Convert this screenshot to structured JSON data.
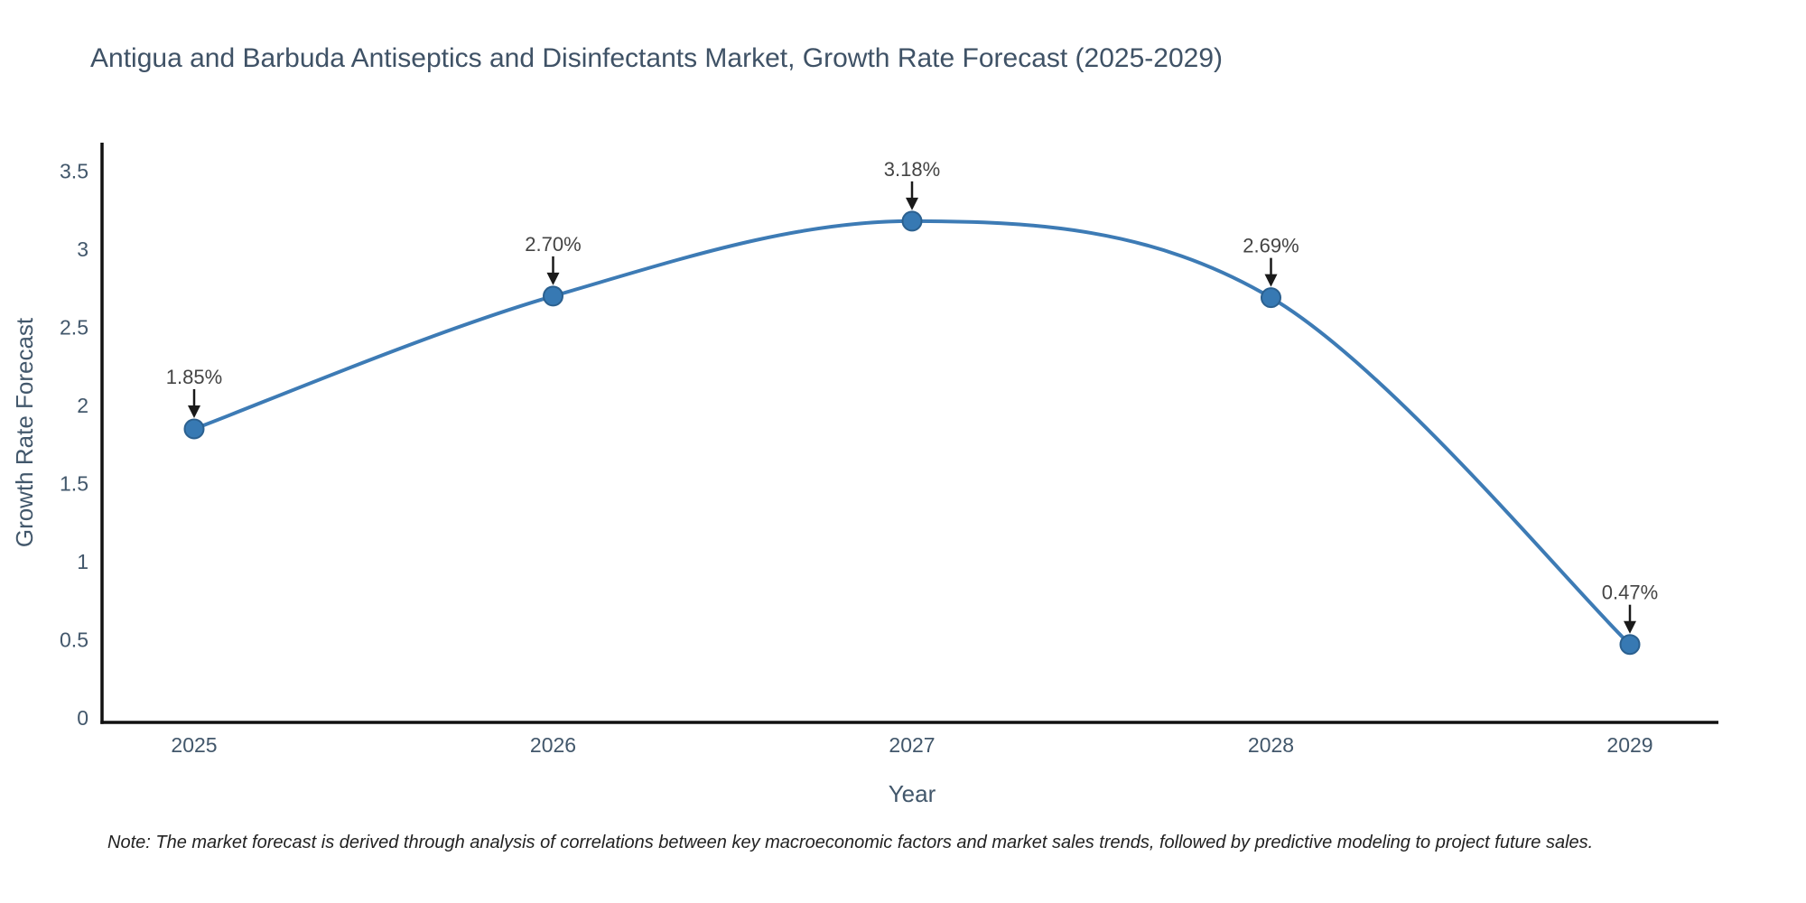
{
  "page": {
    "title": "Antigua and Barbuda Antiseptics and Disinfectants Market, Growth Rate Forecast (2025-2029)",
    "note": "Note: The market forecast is derived through analysis of correlations between key macroeconomic factors and market sales trends, followed by predictive modeling to project future sales."
  },
  "chart_data": {
    "type": "line",
    "title": "Antigua and Barbuda Antiseptics and Disinfectants Market, Growth Rate Forecast (2025-2029)",
    "line_shape": "spline",
    "grid": false,
    "legend_position": "none",
    "x": [
      "2025",
      "2026",
      "2027",
      "2028",
      "2029"
    ],
    "series": [
      {
        "name": "Growth Rate Forecast",
        "values": [
          1.85,
          2.7,
          3.18,
          2.69,
          0.47
        ]
      }
    ],
    "point_labels": [
      "1.85%",
      "2.70%",
      "3.18%",
      "2.69%",
      "0.47%"
    ],
    "xlabel": "Year",
    "ylabel": "Growth Rate Forecast",
    "ylim": [
      0,
      3.5
    ],
    "yticks": [
      0,
      0.5,
      1,
      1.5,
      2,
      2.5,
      3,
      3.5
    ],
    "colors": {
      "line": "#3d7bb5",
      "marker_fill": "#3779b3",
      "marker_border": "#2b608f",
      "axis": "#111111",
      "tick_text": "#42576b",
      "axis_title_text": "#42576b",
      "annotation_text": "#444444",
      "arrow": "#1a1a1a"
    }
  }
}
